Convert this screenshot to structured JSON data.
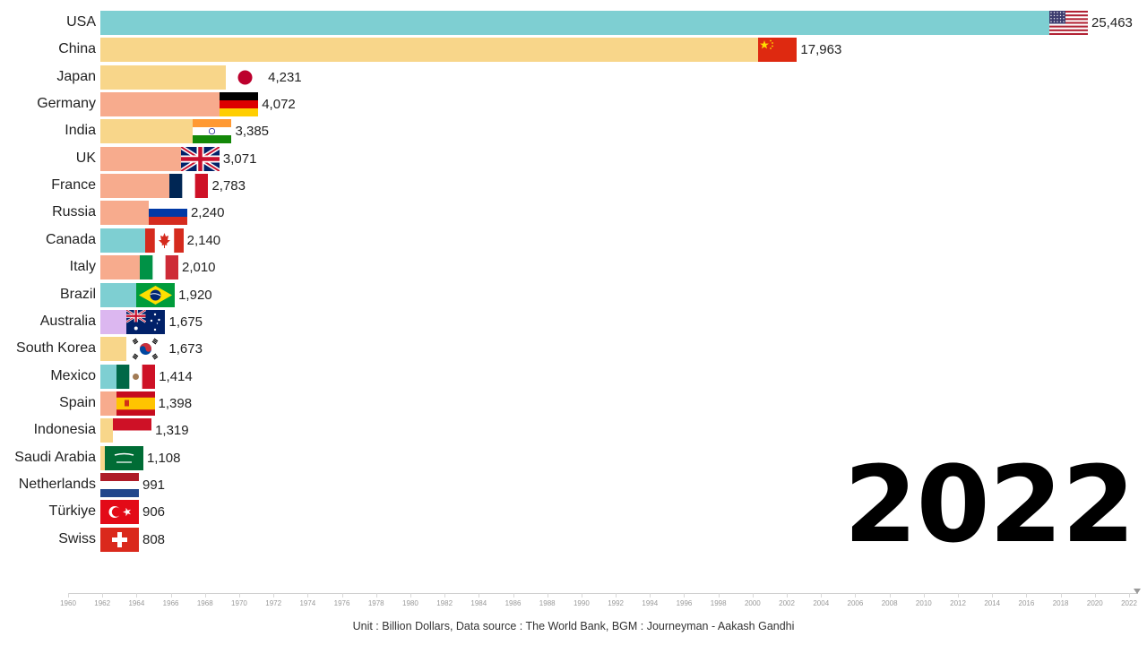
{
  "chart_data": {
    "type": "bar",
    "orientation": "horizontal",
    "year": "2022",
    "categories": [
      "USA",
      "China",
      "Japan",
      "Germany",
      "India",
      "UK",
      "France",
      "Russia",
      "Canada",
      "Italy",
      "Brazil",
      "Australia",
      "South Korea",
      "Mexico",
      "Spain",
      "Indonesia",
      "Saudi Arabia",
      "Netherlands",
      "Türkiye",
      "Swiss"
    ],
    "values": [
      25463,
      17963,
      4231,
      4072,
      3385,
      3071,
      2783,
      2240,
      2140,
      2010,
      1920,
      1675,
      1673,
      1414,
      1398,
      1319,
      1108,
      991,
      906,
      808
    ],
    "value_labels": [
      "25,463",
      "17,963",
      "4,231",
      "4,072",
      "3,385",
      "3,071",
      "2,783",
      "2,240",
      "2,140",
      "2,010",
      "1,920",
      "1,675",
      "1,673",
      "1,414",
      "1,398",
      "1,319",
      "1,108",
      "991",
      "906",
      "808"
    ],
    "colors": [
      "#7ecfd2",
      "#f8d68a",
      "#f8d68a",
      "#f7ab8d",
      "#f8d68a",
      "#f7ab8d",
      "#f7ab8d",
      "#f7ab8d",
      "#7ecfd2",
      "#f7ab8d",
      "#7ecfd2",
      "#dcb7f0",
      "#f8d68a",
      "#7ecfd2",
      "#f7ab8d",
      "#f8d68a",
      "#f8d68a",
      "#f7ab8d",
      "#f7ab8d",
      "#f7ab8d"
    ],
    "flags": [
      "usa-flag",
      "china-flag",
      "japan-flag",
      "germany-flag",
      "india-flag",
      "uk-flag",
      "france-flag",
      "russia-flag",
      "canada-flag",
      "italy-flag",
      "brazil-flag",
      "australia-flag",
      "south-korea-flag",
      "mexico-flag",
      "spain-flag",
      "indonesia-flag",
      "saudi-arabia-flag",
      "netherlands-flag",
      "turkiye-flag",
      "swiss-flag"
    ],
    "xlim": [
      0,
      25463
    ],
    "timeline_ticks": [
      "1960",
      "1962",
      "1964",
      "1966",
      "1968",
      "1970",
      "1972",
      "1974",
      "1976",
      "1978",
      "1980",
      "1982",
      "1984",
      "1986",
      "1988",
      "1990",
      "1992",
      "1994",
      "1996",
      "1998",
      "2000",
      "2002",
      "2004",
      "2006",
      "2008",
      "2010",
      "2012",
      "2014",
      "2016",
      "2018",
      "2020",
      "2022"
    ],
    "footer": "Unit : Billion Dollars, Data source : The World Bank, BGM : Journeyman - Aakash Gandhi"
  }
}
